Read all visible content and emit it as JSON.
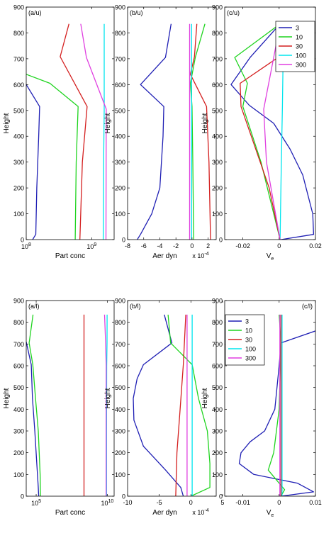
{
  "colors": {
    "3": "#1f1fb4",
    "10": "#1fd41f",
    "30": "#d41f1f",
    "100": "#00e5ee",
    "300": "#e03fe0"
  },
  "chart_data": [
    {
      "panel": "a/u",
      "type": "line",
      "annotation": "(a/u)",
      "xlabel": "Part conc",
      "ylabel": "Height",
      "xscale": "log",
      "xlim": [
        100000000.0,
        2200000000.0
      ],
      "ylim": [
        0,
        900
      ],
      "xticks": [
        {
          "v": 100000000.0,
          "label": "10",
          "sup": "8"
        },
        {
          "v": 1000000000.0,
          "label": "10",
          "sup": "9"
        }
      ],
      "yticks": [
        0,
        100,
        200,
        300,
        400,
        500,
        600,
        700,
        800,
        900
      ],
      "grid": false,
      "series": [
        {
          "name": "3",
          "points": [
            [
              125000000.0,
              0
            ],
            [
              140000000.0,
              20
            ],
            [
              145000000.0,
              200
            ],
            [
              155000000.0,
              400
            ],
            [
              160000000.0,
              515
            ],
            [
              100000000.0,
              600
            ]
          ]
        },
        {
          "name": "10",
          "points": [
            [
              560000000.0,
              0
            ],
            [
              580000000.0,
              300
            ],
            [
              620000000.0,
              515
            ],
            [
              230000000.0,
              605
            ],
            [
              100000000.0,
              640
            ]
          ]
        },
        {
          "name": "30",
          "points": [
            [
              660000000.0,
              0
            ],
            [
              720000000.0,
              300
            ],
            [
              850000000.0,
              515
            ],
            [
              330000000.0,
              708
            ],
            [
              450000000.0,
              835
            ]
          ]
        },
        {
          "name": "100",
          "points": [
            [
              1500000000.0,
              0
            ],
            [
              1520000000.0,
              300
            ],
            [
              1550000000.0,
              505
            ],
            [
              1550000000.0,
              600
            ],
            [
              1550000000.0,
              705
            ],
            [
              1550000000.0,
              835
            ]
          ]
        },
        {
          "name": "300",
          "points": [
            [
              1650000000.0,
              0
            ],
            [
              1660000000.0,
              300
            ],
            [
              1670000000.0,
              505
            ],
            [
              830000000.0,
              705
            ],
            [
              680000000.0,
              835
            ]
          ]
        }
      ]
    },
    {
      "panel": "b/u",
      "type": "line",
      "annotation": "(b/u)",
      "xlabel": "Aer dyn",
      "ylabel": "Height",
      "xmultiplier": "x 10",
      "xmultiplier_exp": "-4",
      "xlim": [
        -8,
        3
      ],
      "ylim": [
        0,
        900
      ],
      "xticks": [
        {
          "v": -8,
          "label": "-8"
        },
        {
          "v": -6,
          "label": "-6"
        },
        {
          "v": -4,
          "label": "-4"
        },
        {
          "v": -2,
          "label": "-2"
        },
        {
          "v": 0,
          "label": "0"
        },
        {
          "v": 2,
          "label": "2"
        }
      ],
      "yticks": [
        0,
        100,
        200,
        300,
        400,
        500,
        600,
        700,
        800,
        900
      ],
      "grid": false,
      "series": [
        {
          "name": "3",
          "points": [
            [
              -6.8,
              0
            ],
            [
              -6.4,
              20
            ],
            [
              -5.0,
              100
            ],
            [
              -4.0,
              200
            ],
            [
              -3.6,
              400
            ],
            [
              -3.5,
              515
            ],
            [
              -6.4,
              600
            ],
            [
              -3.3,
              705
            ],
            [
              -2.6,
              835
            ]
          ]
        },
        {
          "name": "10",
          "points": [
            [
              0.2,
              0
            ],
            [
              0.1,
              300
            ],
            [
              0.0,
              515
            ],
            [
              -0.2,
              605
            ],
            [
              0.4,
              705
            ],
            [
              1.6,
              835
            ]
          ]
        },
        {
          "name": "30",
          "points": [
            [
              2.3,
              0
            ],
            [
              2.1,
              300
            ],
            [
              1.8,
              515
            ],
            [
              -0.2,
              640
            ],
            [
              0.3,
              708
            ],
            [
              0.6,
              835
            ]
          ]
        },
        {
          "name": "100",
          "points": [
            [
              -0.05,
              0
            ],
            [
              -0.05,
              300
            ],
            [
              -0.05,
              515
            ],
            [
              -0.05,
              705
            ],
            [
              -0.05,
              835
            ]
          ]
        },
        {
          "name": "300",
          "points": [
            [
              -0.3,
              0
            ],
            [
              -0.3,
              300
            ],
            [
              -0.3,
              515
            ],
            [
              -0.3,
              705
            ],
            [
              -0.3,
              835
            ]
          ]
        }
      ]
    },
    {
      "panel": "c/u",
      "type": "line",
      "annotation": "(c/u)",
      "xlabel": "V",
      "xlabel_sub": "e",
      "ylabel": "Height",
      "xlim": [
        -0.03,
        0.02
      ],
      "ylim": [
        0,
        900
      ],
      "xticks": [
        {
          "v": -0.02,
          "label": "-0.02"
        },
        {
          "v": 0,
          "label": "0"
        },
        {
          "v": 0.02,
          "label": "0.02"
        }
      ],
      "yticks": [
        0,
        100,
        200,
        300,
        400,
        500,
        600,
        700,
        800,
        900
      ],
      "grid": false,
      "legend": {
        "position": "top-right",
        "entries": [
          "3",
          "10",
          "30",
          "100",
          "300"
        ]
      },
      "series": [
        {
          "name": "3",
          "points": [
            [
              0.001,
              0
            ],
            [
              0.019,
              20
            ],
            [
              0.0185,
              100
            ],
            [
              0.013,
              250
            ],
            [
              0.006,
              350
            ],
            [
              -0.003,
              450
            ],
            [
              -0.0165,
              520
            ],
            [
              -0.0265,
              600
            ],
            [
              -0.016,
              705
            ],
            [
              0.0005,
              835
            ]
          ]
        },
        {
          "name": "10",
          "points": [
            [
              0.0005,
              0
            ],
            [
              -0.01,
              300
            ],
            [
              -0.02,
              515
            ],
            [
              -0.0175,
              605
            ],
            [
              -0.0245,
              705
            ],
            [
              0.0005,
              835
            ]
          ]
        },
        {
          "name": "30",
          "points": [
            [
              0.0005,
              0
            ],
            [
              -0.0055,
              200
            ],
            [
              -0.021,
              515
            ],
            [
              -0.0215,
              605
            ],
            [
              0.0,
              708
            ],
            [
              0.0005,
              835
            ]
          ]
        },
        {
          "name": "100",
          "points": [
            [
              0.0005,
              0
            ],
            [
              0.0012,
              300
            ],
            [
              0.0018,
              515
            ],
            [
              0.0022,
              705
            ],
            [
              0.0005,
              835
            ]
          ]
        },
        {
          "name": "300",
          "points": [
            [
              0.0005,
              0
            ],
            [
              -0.007,
              300
            ],
            [
              -0.0085,
              505
            ],
            [
              -0.003,
              705
            ],
            [
              0.0005,
              835
            ]
          ]
        }
      ]
    },
    {
      "panel": "a/l",
      "type": "line",
      "annotation": "(a/l)",
      "xlabel": "Part conc",
      "ylabel": "Height",
      "xscale": "log",
      "xlim": [
        20000.0,
        30000000000.0
      ],
      "ylim": [
        0,
        900
      ],
      "xticks": [
        {
          "v": 100000.0,
          "label": "10",
          "sup": "5"
        },
        {
          "v": 10000000000.0,
          "label": "10",
          "sup": "10"
        }
      ],
      "yticks": [
        0,
        100,
        200,
        300,
        400,
        500,
        600,
        700,
        800,
        900
      ],
      "grid": false,
      "series": [
        {
          "name": "3",
          "points": [
            [
              150000.0,
              0
            ],
            [
              140000.0,
              40
            ],
            [
              110000.0,
              150
            ],
            [
              80000.0,
              300
            ],
            [
              55000.0,
              450
            ],
            [
              45000.0,
              605
            ],
            [
              20000.0,
              710
            ]
          ]
        },
        {
          "name": "10",
          "points": [
            [
              200000.0,
              0
            ],
            [
              190000.0,
              100
            ],
            [
              140000.0,
              300
            ],
            [
              90000.0,
              450
            ],
            [
              58000.0,
              605
            ],
            [
              32000.0,
              705
            ],
            [
              60000.0,
              835
            ]
          ]
        },
        {
          "name": "30",
          "points": [
            [
              230000000.0,
              0
            ],
            [
              230000000.0,
              200
            ],
            [
              230000000.0,
              400
            ],
            [
              230000000.0,
              600
            ],
            [
              230000000.0,
              835
            ]
          ]
        },
        {
          "name": "100",
          "points": [
            [
              8800000000.0,
              0
            ],
            [
              8800000000.0,
              300
            ],
            [
              9000000000.0,
              600
            ],
            [
              9500000000.0,
              705
            ],
            [
              9600000000.0,
              835
            ]
          ]
        },
        {
          "name": "300",
          "points": [
            [
              8200000000.0,
              0
            ],
            [
              8200000000.0,
              300
            ],
            [
              8300000000.0,
              600
            ],
            [
              7600000000.0,
              705
            ],
            [
              6400000000.0,
              835
            ]
          ]
        }
      ]
    },
    {
      "panel": "b/l",
      "type": "line",
      "annotation": "(b/l)",
      "xlabel": "Aer dyn",
      "ylabel": "Height",
      "xmultiplier": "x 10",
      "xmultiplier_exp": "-4",
      "xlim": [
        -10,
        4
      ],
      "ylim": [
        0,
        900
      ],
      "xticks": [
        {
          "v": -10,
          "label": "-10"
        },
        {
          "v": -5,
          "label": "-5"
        },
        {
          "v": 0,
          "label": "0"
        },
        {
          "v": 5,
          "label": "5"
        }
      ],
      "yticks": [
        0,
        100,
        200,
        300,
        400,
        500,
        600,
        700,
        800,
        900
      ],
      "grid": false,
      "series": [
        {
          "name": "3",
          "points": [
            [
              -1.2,
              0
            ],
            [
              -1.6,
              40
            ],
            [
              -4.0,
              120
            ],
            [
              -7.5,
              230
            ],
            [
              -9.0,
              350
            ],
            [
              -9.1,
              450
            ],
            [
              -8.5,
              540
            ],
            [
              -7.5,
              605
            ],
            [
              -3.0,
              705
            ],
            [
              -4.2,
              835
            ]
          ]
        },
        {
          "name": "10",
          "points": [
            [
              0.0,
              0
            ],
            [
              3.0,
              40
            ],
            [
              3.0,
              150
            ],
            [
              2.6,
              300
            ],
            [
              1.2,
              450
            ],
            [
              0.2,
              605
            ],
            [
              -3.2,
              705
            ],
            [
              -3.6,
              835
            ]
          ]
        },
        {
          "name": "30",
          "points": [
            [
              -2.4,
              0
            ],
            [
              -2.2,
              200
            ],
            [
              -1.7,
              400
            ],
            [
              -1.2,
              605
            ],
            [
              -0.8,
              835
            ]
          ]
        },
        {
          "name": "100",
          "points": [
            [
              0.2,
              0
            ],
            [
              0.2,
              300
            ],
            [
              0.2,
              600
            ],
            [
              0.2,
              835
            ]
          ]
        },
        {
          "name": "300",
          "points": [
            [
              -0.6,
              0
            ],
            [
              -0.6,
              300
            ],
            [
              -0.6,
              600
            ],
            [
              -0.6,
              835
            ]
          ]
        }
      ]
    },
    {
      "panel": "c/l",
      "type": "line",
      "annotation": "(c/l)",
      "xlabel": "V",
      "xlabel_sub": "e",
      "ylabel": "Height",
      "xlim": [
        -0.015,
        0.01
      ],
      "ylim": [
        0,
        900
      ],
      "xticks": [
        {
          "v": -0.01,
          "label": "-0.01"
        },
        {
          "v": 0,
          "label": "0"
        },
        {
          "v": 0.01,
          "label": "0.01"
        }
      ],
      "yticks": [
        0,
        100,
        200,
        300,
        400,
        500,
        600,
        700,
        800,
        900
      ],
      "grid": false,
      "legend": {
        "position": "top-left",
        "entries": [
          "3",
          "10",
          "30",
          "100",
          "300"
        ]
      },
      "series": [
        {
          "name": "3",
          "points": [
            [
              0.0005,
              0
            ],
            [
              0.0095,
              20
            ],
            [
              0.005,
              60
            ],
            [
              -0.007,
              100
            ],
            [
              -0.011,
              150
            ],
            [
              -0.0105,
              200
            ],
            [
              -0.008,
              250
            ],
            [
              -0.004,
              300
            ],
            [
              -0.0012,
              400
            ],
            [
              0.0,
              600
            ],
            [
              0.0005,
              705
            ],
            [
              0.01,
              760
            ]
          ]
        },
        {
          "name": "10",
          "points": [
            [
              0.0005,
              0
            ],
            [
              0.0015,
              30
            ],
            [
              -0.003,
              120
            ],
            [
              -0.0015,
              200
            ],
            [
              0.0,
              400
            ],
            [
              0.0005,
              705
            ],
            [
              0.0,
              835
            ]
          ]
        },
        {
          "name": "30",
          "points": [
            [
              0.0005,
              0
            ],
            [
              0.0005,
              200
            ],
            [
              0.0005,
              400
            ],
            [
              0.0005,
              600
            ],
            [
              0.0005,
              835
            ]
          ]
        },
        {
          "name": "100",
          "points": [
            [
              0.0008,
              0
            ],
            [
              0.0008,
              300
            ],
            [
              0.0008,
              600
            ],
            [
              0.0008,
              835
            ]
          ]
        },
        {
          "name": "300",
          "points": [
            [
              0.0002,
              0
            ],
            [
              0.0002,
              300
            ],
            [
              0.0002,
              600
            ],
            [
              0.0002,
              835
            ]
          ]
        }
      ]
    }
  ]
}
